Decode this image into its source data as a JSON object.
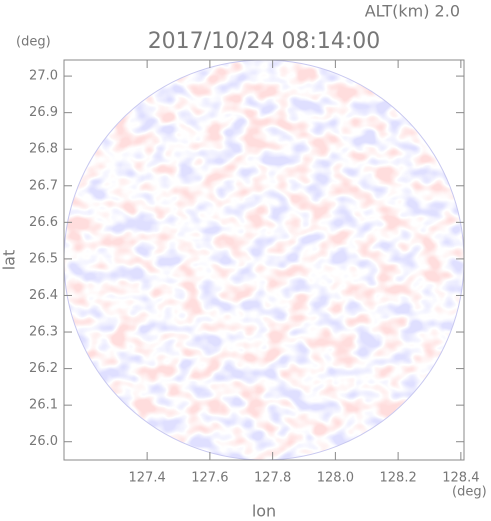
{
  "chart_data": {
    "type": "radar-ppi",
    "title": "2017/10/24 08:14:00",
    "subtitle": "ALT(km) 2.0",
    "x_label": "lon",
    "y_label": "lat",
    "x_unit": "(deg)",
    "y_unit": "(deg)",
    "xlim": [
      127.135,
      128.41
    ],
    "ylim": [
      25.95,
      27.044
    ],
    "xticks": [
      127.4,
      127.6,
      127.8,
      {
        "value": 128,
        "label": "128.0"
      },
      128.2,
      128.4
    ],
    "yticks": [
      {
        "value": 26,
        "label": "26.0"
      },
      26.1,
      26.2,
      26.3,
      26.4,
      26.5,
      26.6,
      26.7,
      26.8,
      26.9,
      {
        "value": 27,
        "label": "27.0"
      }
    ]
  }
}
